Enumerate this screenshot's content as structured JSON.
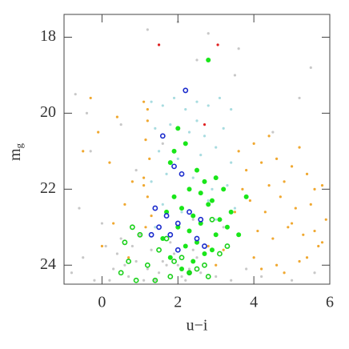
{
  "chart_data": {
    "type": "scatter",
    "xlabel": "u−i",
    "ylabel": "m",
    "ylabel_sub": "g",
    "xlim": [
      -1,
      6
    ],
    "ylim": [
      24.5,
      17.4
    ],
    "xticks": [
      0,
      2,
      4,
      6
    ],
    "yticks": [
      18,
      20,
      22,
      24
    ],
    "series": [
      {
        "color": "#c8c8c8",
        "marker": "dot",
        "x": [
          -0.8,
          -0.5,
          -0.2,
          0.1,
          0.3,
          0.5,
          0.7,
          0.9,
          1.1,
          1.3,
          1.5,
          1.7,
          1.9,
          2.1,
          2.3,
          2.5,
          0.2,
          0.6,
          1.0,
          1.4,
          1.8,
          2.2,
          2.6,
          3.0,
          0.4,
          0.8,
          1.2,
          1.6,
          2.0,
          2.4,
          -0.6,
          0.0,
          3.4,
          3.8,
          4.2,
          5.0,
          5.6,
          -0.3,
          0.9,
          1.5,
          2.5,
          3.5,
          4.5,
          5.5,
          -0.7,
          1.2,
          2.0,
          2.8,
          3.6,
          5.2,
          1.6,
          2.4,
          3.2,
          -0.4,
          0.5
        ],
        "y": [
          24.2,
          23.8,
          24.4,
          23.5,
          24.1,
          23.3,
          24.3,
          23.9,
          24.4,
          23.6,
          24.2,
          24.0,
          23.7,
          24.3,
          24.1,
          23.8,
          24.4,
          24.0,
          23.2,
          24.4,
          23.4,
          24.4,
          24.2,
          24.3,
          23.7,
          23.5,
          24.1,
          23.9,
          24.0,
          23.6,
          22.5,
          22.9,
          24.4,
          24.1,
          24.3,
          24.4,
          24.2,
          21.0,
          21.5,
          18.2,
          18.6,
          19.0,
          20.5,
          18.8,
          19.5,
          17.8,
          17.6,
          17.9,
          18.3,
          19.6,
          20.8,
          22.8,
          23.0,
          20.0,
          20.3
        ]
      },
      {
        "color": "#f0a830",
        "marker": "dot",
        "x": [
          1.1,
          1.2,
          1.15,
          1.25,
          1.1,
          1.2,
          1.3,
          1.15,
          1.2,
          1.1,
          -0.3,
          -0.1,
          0.2,
          0.4,
          0.6,
          0.8,
          0.0,
          0.3,
          0.7,
          -0.5,
          3.6,
          3.8,
          4.0,
          4.2,
          4.4,
          4.6,
          4.8,
          5.0,
          5.2,
          5.4,
          5.6,
          5.8,
          3.9,
          4.3,
          4.7,
          5.1,
          5.5,
          5.9,
          4.1,
          4.5,
          4.9,
          5.3,
          5.7,
          4.0,
          4.6,
          5.2,
          5.8,
          3.7,
          4.4,
          5.0,
          5.6,
          4.2,
          4.8,
          5.4,
          3.5,
          3.2,
          3.0,
          2.8
        ],
        "y": [
          19.7,
          20.2,
          20.7,
          21.2,
          21.7,
          22.2,
          22.7,
          23.0,
          19.9,
          21.9,
          19.6,
          20.5,
          21.3,
          20.1,
          22.4,
          21.8,
          23.5,
          22.9,
          23.8,
          21.0,
          21.0,
          21.5,
          20.8,
          21.3,
          20.6,
          21.2,
          21.8,
          21.4,
          20.9,
          21.6,
          22.0,
          21.9,
          22.3,
          22.6,
          22.2,
          22.5,
          22.4,
          22.8,
          23.1,
          23.3,
          23.0,
          23.2,
          23.5,
          23.8,
          24.0,
          23.9,
          23.4,
          22.0,
          21.9,
          22.9,
          23.1,
          24.1,
          24.2,
          23.8,
          22.6,
          23.6,
          24.0,
          23.5
        ]
      },
      {
        "color": "#a8dce0",
        "marker": "dot",
        "x": [
          1.3,
          1.6,
          1.9,
          2.2,
          2.5,
          2.8,
          3.1,
          3.4,
          1.4,
          1.8,
          2.3,
          2.7,
          3.2,
          1.5,
          2.0,
          2.6,
          3.0,
          3.4,
          1.3,
          1.7,
          2.4,
          2.9,
          3.3,
          1.6,
          2.1,
          2.8,
          3.5,
          1.4,
          3.0,
          2.5
        ],
        "y": [
          19.7,
          19.8,
          19.6,
          19.9,
          19.7,
          19.8,
          19.6,
          19.9,
          20.4,
          20.3,
          20.5,
          20.6,
          20.4,
          21.0,
          21.2,
          21.1,
          20.9,
          21.3,
          21.8,
          21.6,
          21.7,
          22.0,
          21.9,
          22.4,
          22.6,
          22.3,
          22.5,
          23.0,
          22.8,
          20.2
        ]
      },
      {
        "color": "#19e619",
        "marker": "filled",
        "x": [
          2.0,
          2.2,
          1.8,
          2.5,
          2.7,
          3.0,
          2.3,
          1.9,
          2.6,
          2.9,
          3.2,
          1.7,
          2.1,
          2.4,
          2.8,
          3.1,
          3.4,
          2.0,
          2.3,
          2.6,
          3.0,
          3.3,
          1.6,
          2.2,
          2.5,
          2.9,
          3.6,
          1.8,
          2.4,
          2.7,
          2.1,
          3.8,
          1.9,
          2.8,
          2.3
        ],
        "y": [
          20.4,
          20.8,
          21.3,
          21.5,
          21.8,
          21.7,
          22.0,
          22.2,
          22.1,
          22.3,
          22.0,
          22.6,
          22.5,
          22.7,
          22.4,
          22.8,
          22.6,
          23.0,
          23.1,
          22.9,
          23.2,
          23.0,
          23.3,
          23.5,
          23.4,
          23.6,
          23.2,
          23.8,
          23.9,
          23.7,
          24.1,
          22.2,
          21.0,
          18.6,
          24.2
        ]
      },
      {
        "color": "#19d019",
        "marker": "open",
        "x": [
          0.5,
          0.7,
          0.9,
          1.2,
          1.5,
          1.8,
          2.1,
          2.5,
          2.8,
          3.1,
          0.6,
          1.0,
          1.4,
          1.9,
          2.3,
          2.7,
          3.3,
          0.8,
          1.7,
          2.9
        ],
        "y": [
          24.2,
          23.9,
          24.4,
          24.0,
          23.6,
          24.3,
          23.8,
          24.1,
          24.3,
          23.7,
          23.4,
          23.2,
          24.4,
          23.9,
          24.2,
          24.0,
          23.5,
          23.0,
          23.3,
          22.8
        ]
      },
      {
        "color": "#1a2acc",
        "marker": "open",
        "x": [
          2.2,
          1.6,
          1.9,
          2.1,
          1.4,
          1.7,
          2.0,
          2.3,
          2.6,
          1.5,
          1.8,
          2.5,
          2.7,
          1.3,
          2.0
        ],
        "y": [
          19.4,
          20.6,
          21.4,
          21.6,
          22.5,
          22.7,
          22.9,
          22.6,
          22.8,
          23.0,
          23.2,
          23.3,
          23.5,
          23.2,
          23.6
        ]
      },
      {
        "color": "#e02020",
        "marker": "dot",
        "x": [
          1.5,
          3.05,
          2.7
        ],
        "y": [
          18.2,
          18.2,
          20.3
        ]
      }
    ]
  }
}
